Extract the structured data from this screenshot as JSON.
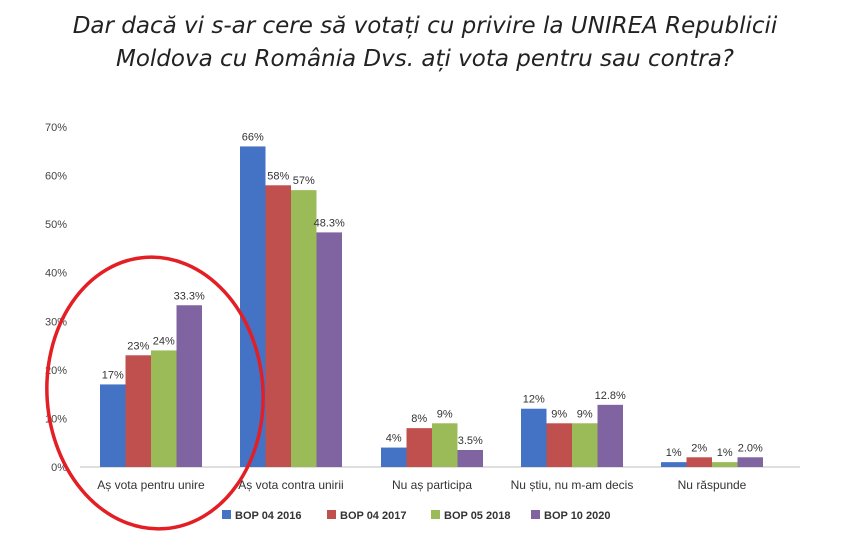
{
  "title_lines": [
    "Dar dacă vi s-ar cere să votați cu privire la UNIREA Republicii",
    "Moldova cu România Dvs. ați vota pentru sau contra?"
  ],
  "chart_data": {
    "type": "bar",
    "title": "Dar dacă vi s-ar cere să votați cu privire la UNIREA Republicii Moldova cu România Dvs. ați vota pentru sau contra?",
    "categories": [
      "Aș vota pentru unire",
      "Aș vota contra unirii",
      "Nu aș participa",
      "Nu știu, nu m-am decis",
      "Nu răspunde"
    ],
    "series": [
      {
        "name": "BOP 04 2016",
        "color": "#4472C4",
        "values": [
          17,
          66,
          4,
          12,
          1
        ],
        "labels": [
          "17%",
          "66%",
          "4%",
          "12%",
          "1%"
        ]
      },
      {
        "name": "BOP 04 2017",
        "color": "#C0504D",
        "values": [
          23,
          58,
          8,
          9,
          2
        ],
        "labels": [
          "23%",
          "58%",
          "8%",
          "9%",
          "2%"
        ]
      },
      {
        "name": "BOP 05 2018",
        "color": "#9BBB59",
        "values": [
          24,
          57,
          9,
          9,
          1
        ],
        "labels": [
          "24%",
          "57%",
          "9%",
          "9%",
          "1%"
        ]
      },
      {
        "name": "BOP 10 2020",
        "color": "#8064A2",
        "values": [
          33.3,
          48.3,
          3.5,
          12.8,
          2.0
        ],
        "labels": [
          "33.3%",
          "48.3%",
          "3.5%",
          "12.8%",
          "2.0%"
        ]
      }
    ],
    "yticks": [
      "0%",
      "10%",
      "20%",
      "30%",
      "40%",
      "50%",
      "60%",
      "70%"
    ],
    "ylim": [
      0,
      70
    ],
    "grid": false,
    "legend_position": "bottom",
    "annotation": "red ellipse circling the 'Aș vota pentru unire' group",
    "annotation_color": "#E31E24"
  }
}
